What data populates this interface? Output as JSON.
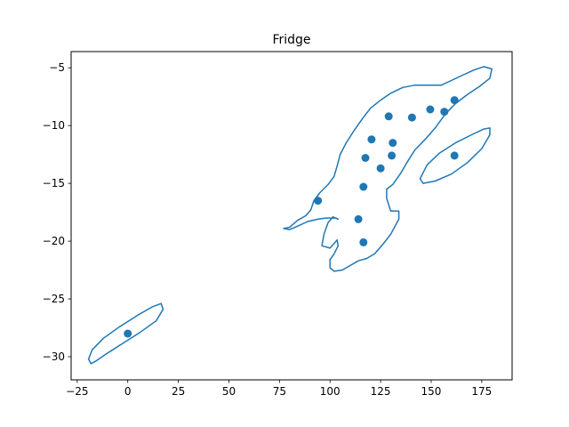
{
  "chart_data": {
    "type": "scatter",
    "title": "Fridge",
    "xlabel": "",
    "ylabel": "",
    "xlim": [
      -28,
      190
    ],
    "ylim": [
      -32,
      -3.6
    ],
    "xticks": [
      -25,
      0,
      25,
      50,
      75,
      100,
      125,
      150,
      175
    ],
    "yticks": [
      -30,
      -25,
      -20,
      -15,
      -10,
      -5
    ],
    "xtick_labels": [
      "−25",
      "0",
      "25",
      "50",
      "75",
      "100",
      "125",
      "150",
      "175"
    ],
    "ytick_labels": [
      "−30",
      "−25",
      "−20",
      "−15",
      "−10",
      "−5"
    ],
    "grid": false,
    "colors": {
      "series": "#1f77b4",
      "axes": "#000000",
      "background": "#ffffff"
    },
    "points": [
      {
        "x": 0,
        "y": -28.0
      },
      {
        "x": 94,
        "y": -16.5
      },
      {
        "x": 114,
        "y": -18.1
      },
      {
        "x": 116.5,
        "y": -20.1
      },
      {
        "x": 116.5,
        "y": -15.3
      },
      {
        "x": 117.5,
        "y": -12.8
      },
      {
        "x": 120.5,
        "y": -11.2
      },
      {
        "x": 125,
        "y": -13.7
      },
      {
        "x": 129,
        "y": -9.2
      },
      {
        "x": 130.5,
        "y": -12.6
      },
      {
        "x": 131,
        "y": -11.5
      },
      {
        "x": 140.5,
        "y": -9.3
      },
      {
        "x": 149.5,
        "y": -8.6
      },
      {
        "x": 156.5,
        "y": -8.8
      },
      {
        "x": 161.5,
        "y": -7.8
      },
      {
        "x": 161.5,
        "y": -12.6
      }
    ],
    "contours": [
      [
        [
          -18.2,
          -30.6
        ],
        [
          -19.4,
          -30.2
        ],
        [
          -17.6,
          -29.4
        ],
        [
          -12.0,
          -28.4
        ],
        [
          -4.0,
          -27.4
        ],
        [
          5.0,
          -26.4
        ],
        [
          12.0,
          -25.7
        ],
        [
          16.5,
          -25.4
        ],
        [
          17.5,
          -25.9
        ],
        [
          14.0,
          -26.9
        ],
        [
          6.0,
          -27.9
        ],
        [
          -3.0,
          -28.9
        ],
        [
          -11.0,
          -29.8
        ],
        [
          -16.0,
          -30.4
        ],
        [
          -18.2,
          -30.6
        ]
      ],
      [
        [
          146.0,
          -15.0
        ],
        [
          144.5,
          -14.6
        ],
        [
          148.0,
          -13.4
        ],
        [
          154.0,
          -12.4
        ],
        [
          162.0,
          -11.5
        ],
        [
          170.0,
          -10.8
        ],
        [
          176.0,
          -10.3
        ],
        [
          179.0,
          -10.2
        ],
        [
          179.0,
          -10.8
        ],
        [
          175.0,
          -12.0
        ],
        [
          168.0,
          -13.2
        ],
        [
          160.0,
          -14.2
        ],
        [
          152.0,
          -14.8
        ],
        [
          146.0,
          -15.0
        ]
      ],
      [
        [
          77.0,
          -18.9
        ],
        [
          80.0,
          -18.8
        ],
        [
          84.0,
          -18.2
        ],
        [
          88.0,
          -17.8
        ],
        [
          90.5,
          -17.3
        ],
        [
          92.0,
          -16.5
        ],
        [
          95.0,
          -15.8
        ],
        [
          99.0,
          -15.1
        ],
        [
          102.0,
          -14.4
        ],
        [
          103.5,
          -13.5
        ],
        [
          105.0,
          -12.5
        ],
        [
          108.0,
          -11.5
        ],
        [
          112.0,
          -10.4
        ],
        [
          116.0,
          -9.4
        ],
        [
          120.0,
          -8.5
        ],
        [
          125.0,
          -7.8
        ],
        [
          130.0,
          -7.2
        ],
        [
          136.0,
          -6.7
        ],
        [
          142.0,
          -6.5
        ],
        [
          148.0,
          -6.5
        ],
        [
          152.0,
          -6.5
        ],
        [
          155.0,
          -6.5
        ],
        [
          160.0,
          -6.1
        ],
        [
          166.0,
          -5.6
        ],
        [
          171.0,
          -5.2
        ],
        [
          176.0,
          -4.9
        ],
        [
          180.0,
          -5.1
        ],
        [
          179.0,
          -5.9
        ],
        [
          174.0,
          -6.6
        ],
        [
          168.0,
          -7.3
        ],
        [
          162.0,
          -8.1
        ],
        [
          157.0,
          -9.0
        ],
        [
          152.0,
          -10.2
        ],
        [
          147.0,
          -11.2
        ],
        [
          142.0,
          -12.1
        ],
        [
          138.0,
          -13.2
        ],
        [
          135.0,
          -14.1
        ],
        [
          131.0,
          -15.1
        ],
        [
          128.0,
          -15.5
        ],
        [
          128.0,
          -16.3
        ],
        [
          130.0,
          -17.4
        ],
        [
          134.0,
          -17.4
        ],
        [
          134.0,
          -18.1
        ],
        [
          130.0,
          -19.4
        ],
        [
          126.0,
          -20.3
        ],
        [
          122.0,
          -21.1
        ],
        [
          118.0,
          -21.5
        ],
        [
          114.0,
          -21.7
        ],
        [
          110.0,
          -22.1
        ],
        [
          106.0,
          -22.5
        ],
        [
          102.0,
          -22.6
        ],
        [
          100.0,
          -22.3
        ],
        [
          100.0,
          -21.6
        ],
        [
          102.0,
          -21.1
        ],
        [
          104.0,
          -20.4
        ],
        [
          103.5,
          -19.9
        ],
        [
          100.0,
          -20.6
        ],
        [
          96.0,
          -20.4
        ],
        [
          97.0,
          -19.4
        ],
        [
          99.0,
          -18.4
        ],
        [
          101.5,
          -17.9
        ],
        [
          104.0,
          -18.1
        ],
        [
          103.0,
          -18.0
        ],
        [
          98.0,
          -18.0
        ],
        [
          94.0,
          -18.1
        ],
        [
          89.0,
          -18.3
        ],
        [
          84.0,
          -18.7
        ],
        [
          80.0,
          -19.0
        ],
        [
          77.0,
          -18.9
        ]
      ]
    ]
  }
}
